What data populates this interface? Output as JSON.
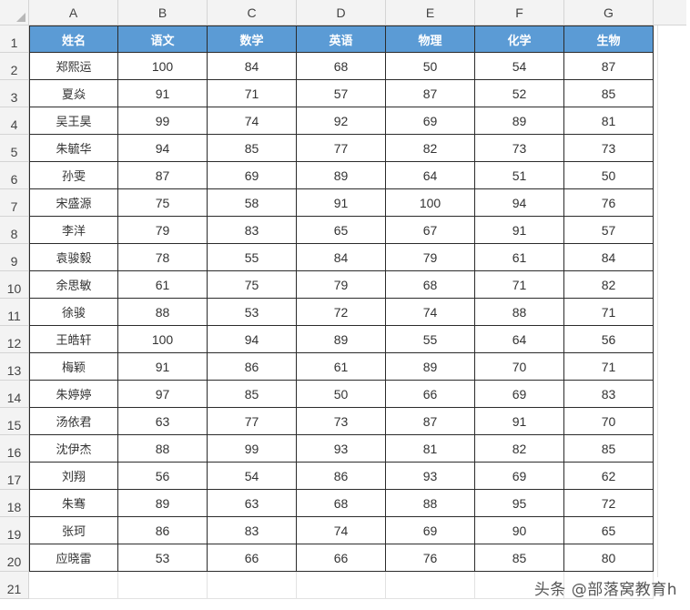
{
  "spreadsheet": {
    "column_letters": [
      "A",
      "B",
      "C",
      "D",
      "E",
      "F",
      "G"
    ],
    "row_numbers": [
      "1",
      "2",
      "3",
      "4",
      "5",
      "6",
      "7",
      "8",
      "9",
      "10",
      "11",
      "12",
      "13",
      "14",
      "15",
      "16",
      "17",
      "18",
      "19",
      "20",
      "21"
    ],
    "header_fill_color": "#5b9bd5",
    "headers": [
      "姓名",
      "语文",
      "数学",
      "英语",
      "物理",
      "化学",
      "生物"
    ],
    "rows": [
      [
        "郑熙运",
        "100",
        "84",
        "68",
        "50",
        "54",
        "87"
      ],
      [
        "夏焱",
        "91",
        "71",
        "57",
        "87",
        "52",
        "85"
      ],
      [
        "吴王昊",
        "99",
        "74",
        "92",
        "69",
        "89",
        "81"
      ],
      [
        "朱毓华",
        "94",
        "85",
        "77",
        "82",
        "73",
        "73"
      ],
      [
        "孙雯",
        "87",
        "69",
        "89",
        "64",
        "51",
        "50"
      ],
      [
        "宋盛源",
        "75",
        "58",
        "91",
        "100",
        "94",
        "76"
      ],
      [
        "李洋",
        "79",
        "83",
        "65",
        "67",
        "91",
        "57"
      ],
      [
        "袁骏毅",
        "78",
        "55",
        "84",
        "79",
        "61",
        "84"
      ],
      [
        "余思敏",
        "61",
        "75",
        "79",
        "68",
        "71",
        "82"
      ],
      [
        "徐骏",
        "88",
        "53",
        "72",
        "74",
        "88",
        "71"
      ],
      [
        "王皓轩",
        "100",
        "94",
        "89",
        "55",
        "64",
        "56"
      ],
      [
        "梅颖",
        "91",
        "86",
        "61",
        "89",
        "70",
        "71"
      ],
      [
        "朱婷婷",
        "97",
        "85",
        "50",
        "66",
        "69",
        "83"
      ],
      [
        "汤依君",
        "63",
        "77",
        "73",
        "87",
        "91",
        "70"
      ],
      [
        "沈伊杰",
        "88",
        "99",
        "93",
        "81",
        "82",
        "85"
      ],
      [
        "刘翔",
        "56",
        "54",
        "86",
        "93",
        "69",
        "62"
      ],
      [
        "朱骞",
        "89",
        "63",
        "68",
        "88",
        "95",
        "72"
      ],
      [
        "张珂",
        "86",
        "83",
        "74",
        "69",
        "90",
        "65"
      ],
      [
        "应晓雷",
        "53",
        "66",
        "66",
        "76",
        "85",
        "80"
      ]
    ]
  },
  "watermark": {
    "text": "头条 @部落窝教育h"
  }
}
